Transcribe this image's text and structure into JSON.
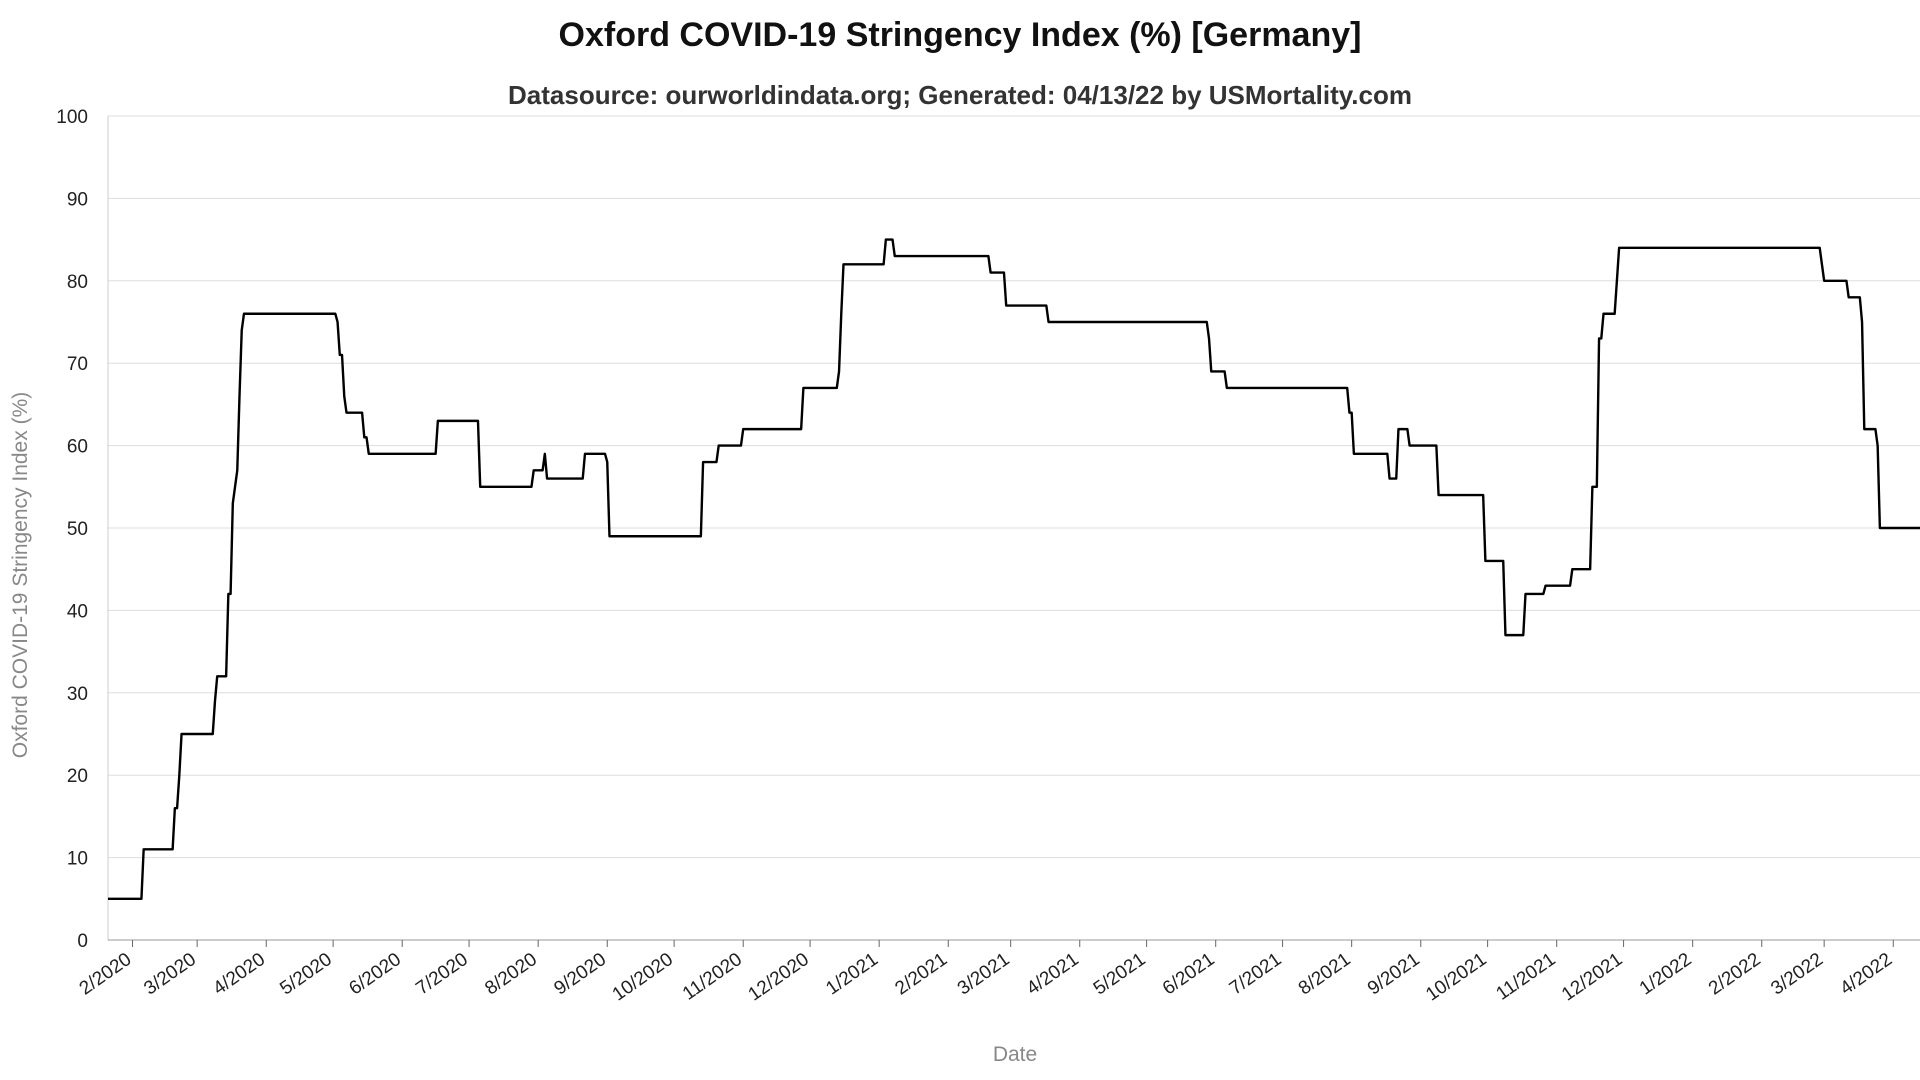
{
  "chart_data": {
    "type": "line",
    "title": "Oxford COVID-19 Stringency Index (%) [Germany]",
    "subtitle": "Datasource: ourworldindata.org; Generated: 04/13/22 by USMortality.com",
    "xlabel": "Date",
    "ylabel": "Oxford COVID-19 Stringency Index (%)",
    "ylim": [
      0,
      100
    ],
    "y_ticks": [
      0,
      10,
      20,
      30,
      40,
      50,
      60,
      70,
      80,
      90,
      100
    ],
    "x_range": [
      "2020-01-21",
      "2022-04-13"
    ],
    "x_ticks": [
      {
        "date": "2020-02-01",
        "label": "2/2020"
      },
      {
        "date": "2020-03-01",
        "label": "3/2020"
      },
      {
        "date": "2020-04-01",
        "label": "4/2020"
      },
      {
        "date": "2020-05-01",
        "label": "5/2020"
      },
      {
        "date": "2020-06-01",
        "label": "6/2020"
      },
      {
        "date": "2020-07-01",
        "label": "7/2020"
      },
      {
        "date": "2020-08-01",
        "label": "8/2020"
      },
      {
        "date": "2020-09-01",
        "label": "9/2020"
      },
      {
        "date": "2020-10-01",
        "label": "10/2020"
      },
      {
        "date": "2020-11-01",
        "label": "11/2020"
      },
      {
        "date": "2020-12-01",
        "label": "12/2020"
      },
      {
        "date": "2021-01-01",
        "label": "1/2021"
      },
      {
        "date": "2021-02-01",
        "label": "2/2021"
      },
      {
        "date": "2021-03-01",
        "label": "3/2021"
      },
      {
        "date": "2021-04-01",
        "label": "4/2021"
      },
      {
        "date": "2021-05-01",
        "label": "5/2021"
      },
      {
        "date": "2021-06-01",
        "label": "6/2021"
      },
      {
        "date": "2021-07-01",
        "label": "7/2021"
      },
      {
        "date": "2021-08-01",
        "label": "8/2021"
      },
      {
        "date": "2021-09-01",
        "label": "9/2021"
      },
      {
        "date": "2021-10-01",
        "label": "10/2021"
      },
      {
        "date": "2021-11-01",
        "label": "11/2021"
      },
      {
        "date": "2021-12-01",
        "label": "12/2021"
      },
      {
        "date": "2022-01-01",
        "label": "1/2022"
      },
      {
        "date": "2022-02-01",
        "label": "2/2022"
      },
      {
        "date": "2022-03-01",
        "label": "3/2022"
      },
      {
        "date": "2022-04-01",
        "label": "4/2022"
      }
    ],
    "grid": true,
    "line_color": "#000000",
    "series": [
      {
        "steps": [
          {
            "date": "2020-01-21",
            "value": 5
          },
          {
            "date": "2020-02-06",
            "value": 11
          },
          {
            "date": "2020-02-20",
            "value": 16
          },
          {
            "date": "2020-02-21",
            "value": 16
          },
          {
            "date": "2020-02-22",
            "value": 20
          },
          {
            "date": "2020-02-23",
            "value": 25
          },
          {
            "date": "2020-03-09",
            "value": 29
          },
          {
            "date": "2020-03-10",
            "value": 32
          },
          {
            "date": "2020-03-15",
            "value": 42
          },
          {
            "date": "2020-03-16",
            "value": 42
          },
          {
            "date": "2020-03-17",
            "value": 53
          },
          {
            "date": "2020-03-18",
            "value": 55
          },
          {
            "date": "2020-03-19",
            "value": 57
          },
          {
            "date": "2020-03-20",
            "value": 66
          },
          {
            "date": "2020-03-21",
            "value": 74
          },
          {
            "date": "2020-03-22",
            "value": 76
          },
          {
            "date": "2020-05-03",
            "value": 75
          },
          {
            "date": "2020-05-04",
            "value": 71
          },
          {
            "date": "2020-05-05",
            "value": 71
          },
          {
            "date": "2020-05-06",
            "value": 66
          },
          {
            "date": "2020-05-07",
            "value": 64
          },
          {
            "date": "2020-05-15",
            "value": 61
          },
          {
            "date": "2020-05-16",
            "value": 61
          },
          {
            "date": "2020-05-17",
            "value": 59
          },
          {
            "date": "2020-06-17",
            "value": 63
          },
          {
            "date": "2020-07-06",
            "value": 55
          },
          {
            "date": "2020-07-30",
            "value": 57
          },
          {
            "date": "2020-08-04",
            "value": 59
          },
          {
            "date": "2020-08-05",
            "value": 56
          },
          {
            "date": "2020-08-22",
            "value": 59
          },
          {
            "date": "2020-09-01",
            "value": 58
          },
          {
            "date": "2020-09-02",
            "value": 49
          },
          {
            "date": "2020-10-14",
            "value": 58
          },
          {
            "date": "2020-10-21",
            "value": 60
          },
          {
            "date": "2020-11-01",
            "value": 62
          },
          {
            "date": "2020-11-28",
            "value": 67
          },
          {
            "date": "2020-12-14",
            "value": 69
          },
          {
            "date": "2020-12-15",
            "value": 76
          },
          {
            "date": "2020-12-16",
            "value": 82
          },
          {
            "date": "2021-01-04",
            "value": 85
          },
          {
            "date": "2021-01-08",
            "value": 83
          },
          {
            "date": "2021-02-20",
            "value": 81
          },
          {
            "date": "2021-02-27",
            "value": 77
          },
          {
            "date": "2021-03-18",
            "value": 75
          },
          {
            "date": "2021-05-29",
            "value": 73
          },
          {
            "date": "2021-05-30",
            "value": 69
          },
          {
            "date": "2021-06-06",
            "value": 67
          },
          {
            "date": "2021-07-31",
            "value": 64
          },
          {
            "date": "2021-08-01",
            "value": 64
          },
          {
            "date": "2021-08-02",
            "value": 59
          },
          {
            "date": "2021-08-18",
            "value": 56
          },
          {
            "date": "2021-08-22",
            "value": 62
          },
          {
            "date": "2021-08-27",
            "value": 60
          },
          {
            "date": "2021-09-09",
            "value": 54
          },
          {
            "date": "2021-09-30",
            "value": 46
          },
          {
            "date": "2021-10-09",
            "value": 37
          },
          {
            "date": "2021-10-18",
            "value": 42
          },
          {
            "date": "2021-10-27",
            "value": 43
          },
          {
            "date": "2021-11-08",
            "value": 45
          },
          {
            "date": "2021-11-17",
            "value": 55
          },
          {
            "date": "2021-11-20",
            "value": 73
          },
          {
            "date": "2021-11-21",
            "value": 73
          },
          {
            "date": "2021-11-22",
            "value": 76
          },
          {
            "date": "2021-11-28",
            "value": 80
          },
          {
            "date": "2021-11-29",
            "value": 84
          },
          {
            "date": "2022-02-28",
            "value": 82
          },
          {
            "date": "2022-03-01",
            "value": 80
          },
          {
            "date": "2022-03-12",
            "value": 78
          },
          {
            "date": "2022-03-18",
            "value": 75
          },
          {
            "date": "2022-03-19",
            "value": 62
          },
          {
            "date": "2022-03-25",
            "value": 60
          },
          {
            "date": "2022-03-26",
            "value": 50
          },
          {
            "date": "2022-04-13",
            "value": 50
          }
        ]
      }
    ]
  }
}
